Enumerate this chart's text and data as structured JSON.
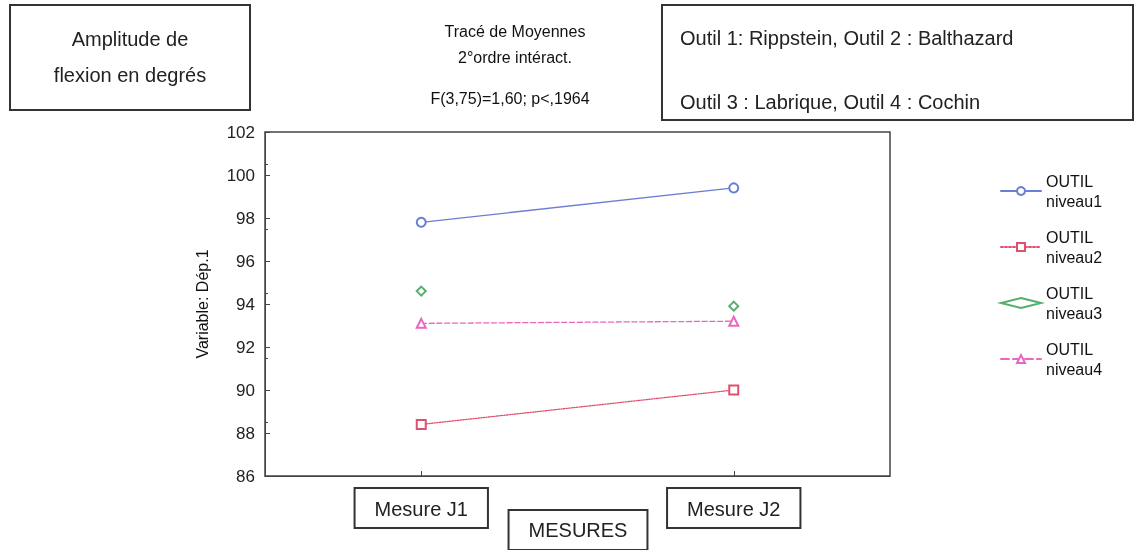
{
  "chart_data": {
    "type": "line",
    "title": "Tracé de Moyennes",
    "subtitle": "2°ordre intéract.",
    "xlabel": "MESURES",
    "ylabel": "Variable: Dép.1",
    "annotations": [
      "F(3,75)=1,60; p<,1964",
      "Amplitude de flexion en degrés",
      "Outil 1: Rippstein, Outil 2 : Balthazard",
      "Outil 3 : Labrique, Outil 4 : Cochin"
    ],
    "categories": [
      "Mesure J1",
      "Mesure J2"
    ],
    "series": [
      {
        "name": "OUTIL niveau1",
        "color": "#6a7fd0",
        "values": [
          97.8,
          99.4
        ],
        "marker": "circle",
        "line_style": "solid"
      },
      {
        "name": "OUTIL niveau2",
        "color": "#e0506e",
        "values": [
          88.4,
          90.0
        ],
        "marker": "square",
        "line_style": "dotted"
      },
      {
        "name": "OUTIL niveau3",
        "color": "#2a9a4a",
        "values": [
          94.6,
          93.9
        ],
        "marker": "diamond",
        "type": "scatter"
      },
      {
        "name": "OUTIL niveau4",
        "color": "#e868c0",
        "values": [
          93.1,
          93.2
        ],
        "marker": "triangle",
        "line_style": "dashed"
      }
    ],
    "ylim": [
      86,
      102
    ],
    "yticks": [
      86,
      88,
      90,
      92,
      94,
      96,
      98,
      100,
      102
    ],
    "grid": false,
    "legend": "right"
  }
}
